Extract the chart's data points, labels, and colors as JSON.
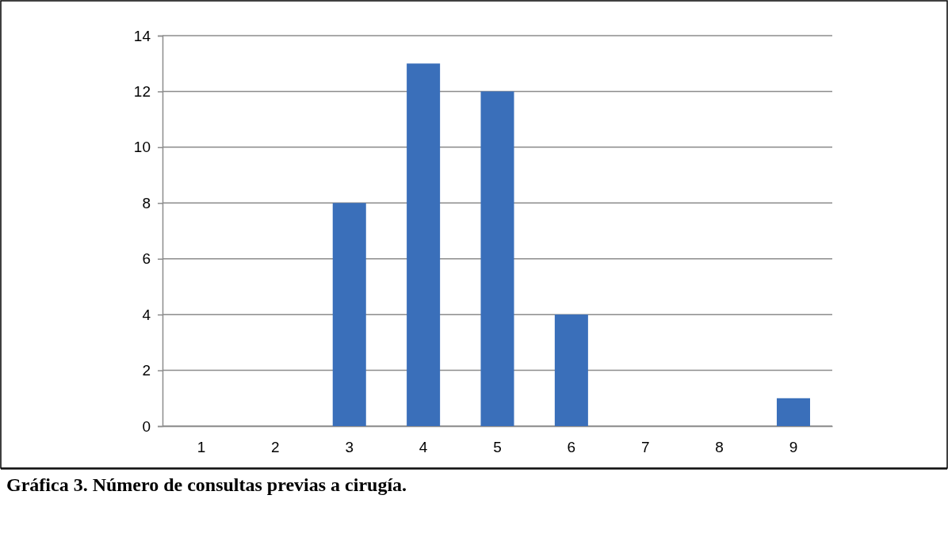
{
  "chart_data": {
    "type": "bar",
    "title": "Gráfica 3. Número de consultas previas a cirugía.",
    "categories": [
      "1",
      "2",
      "3",
      "4",
      "5",
      "6",
      "7",
      "8",
      "9"
    ],
    "values": [
      0,
      0,
      8,
      13,
      12,
      4,
      0,
      0,
      1
    ],
    "color": "#3a6fba",
    "ylim": [
      0,
      14
    ],
    "yticks": [
      0,
      2,
      4,
      6,
      8,
      10,
      12,
      14
    ],
    "grid": "y"
  }
}
